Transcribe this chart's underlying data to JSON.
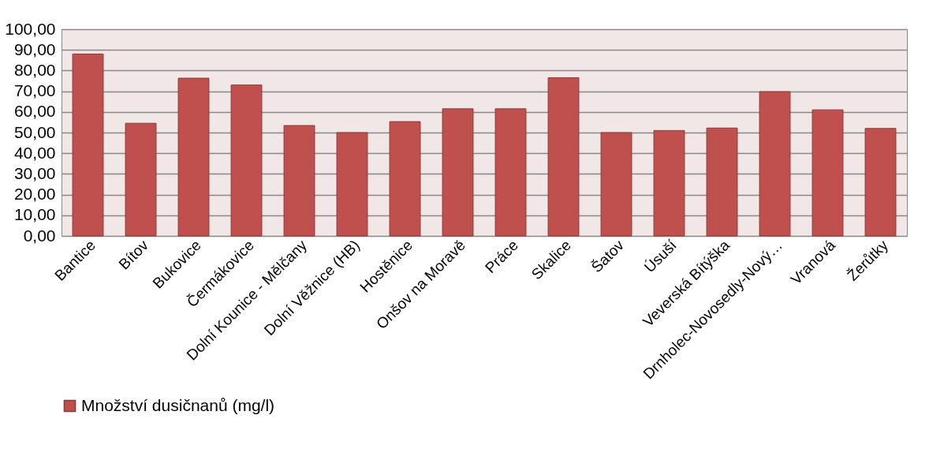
{
  "chart_data": {
    "type": "bar",
    "categories": [
      "Bantice",
      "Bítov",
      "Bukovice",
      "Čermákovice",
      "Dolní Kounice - Mělčany",
      "Dolní Věžnice (HB)",
      "Hostěnice",
      "Onšov na Moravě",
      "Práce",
      "Skalice",
      "Šatov",
      "Úsuší",
      "Veverská Bítýška",
      "Drnholec-Novosedly-Nový…",
      "Vranová",
      "Žerůtky"
    ],
    "series": [
      {
        "name": "Množství dusičnanů (mg/l)",
        "color": "#c0504d",
        "values": [
          88,
          54.5,
          76.3,
          73,
          53.4,
          50,
          55.3,
          61.5,
          61.5,
          76.5,
          50,
          51,
          52.2,
          69.8,
          61,
          52
        ]
      }
    ],
    "ylim": [
      0,
      100
    ],
    "yticks": [
      {
        "value": 0,
        "label": "0,00"
      },
      {
        "value": 10,
        "label": "10,00"
      },
      {
        "value": 20,
        "label": "20,00"
      },
      {
        "value": 30,
        "label": "30,00"
      },
      {
        "value": 40,
        "label": "40,00"
      },
      {
        "value": 50,
        "label": "50,00"
      },
      {
        "value": 60,
        "label": "60,00"
      },
      {
        "value": 70,
        "label": "70,00"
      },
      {
        "value": 80,
        "label": "80,00"
      },
      {
        "value": 90,
        "label": "90,00"
      },
      {
        "value": 100,
        "label": "100,00"
      }
    ],
    "grid": "y",
    "legend": "bottom"
  }
}
